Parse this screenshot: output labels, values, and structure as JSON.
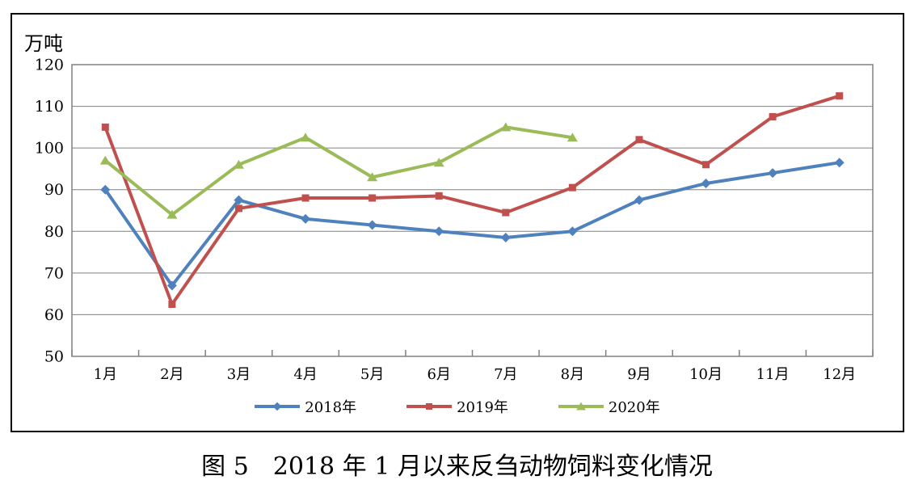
{
  "figure": {
    "unit_label": "万吨",
    "caption": "图 5　2018 年 1 月以来反刍动物饲料变化情况"
  },
  "chart_data": {
    "type": "line",
    "title": "图 5　2018 年 1 月以来反刍动物饲料变化情况",
    "ylabel": "万吨",
    "xlabel": "",
    "ylim": [
      50,
      120
    ],
    "ytick_step": 10,
    "grid": true,
    "legend_position": "bottom",
    "categories": [
      "1月",
      "2月",
      "3月",
      "4月",
      "5月",
      "6月",
      "7月",
      "8月",
      "9月",
      "10月",
      "11月",
      "12月"
    ],
    "series": [
      {
        "name": "2018年",
        "color": "#4F81BD",
        "marker": "diamond",
        "values": [
          90,
          67,
          87.5,
          83,
          81.5,
          80,
          78.5,
          80,
          87.5,
          91.5,
          94,
          96.5
        ]
      },
      {
        "name": "2019年",
        "color": "#C0504D",
        "marker": "square",
        "values": [
          105,
          62.5,
          85.5,
          88,
          88,
          88.5,
          84.5,
          90.5,
          102,
          96,
          107.5,
          112.5
        ]
      },
      {
        "name": "2020年",
        "color": "#9BBB59",
        "marker": "triangle",
        "values": [
          97,
          84,
          96,
          102.5,
          93,
          96.5,
          105,
          102.5
        ]
      }
    ],
    "axis_color": "#808080",
    "grid_color": "#808080"
  }
}
